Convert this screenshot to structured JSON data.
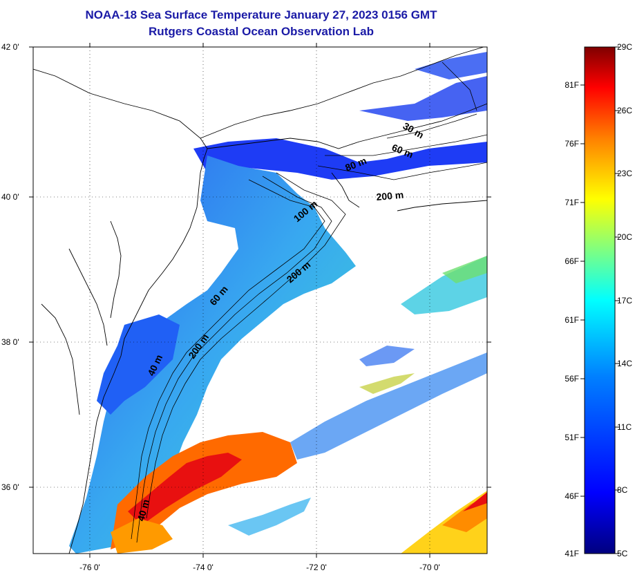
{
  "title": "NOAA-18 Sea Surface Temperature January 27, 2023 0156 GMT",
  "subtitle": "Rutgers Coastal Ocean Observation Lab",
  "map": {
    "lat_ticks": [
      "42 0'",
      "40 0'",
      "38 0'",
      "36 0'"
    ],
    "lon_ticks": [
      "-76 0'",
      "-74 0'",
      "-72 0'",
      "-70 0'"
    ],
    "lat_range": [
      35.0,
      42.0
    ],
    "lon_range": [
      -77.0,
      -69.0
    ],
    "contour_labels": [
      "30 m",
      "60 m",
      "80 m",
      "200 m",
      "100 m",
      "200 m",
      "60 m",
      "200 m",
      "40 m",
      "40 m"
    ]
  },
  "colorbar": {
    "celsius_labels": [
      "29C",
      "26C",
      "23C",
      "20C",
      "17C",
      "14C",
      "11C",
      "8C",
      "5C"
    ],
    "fahrenheit_labels": [
      "81F",
      "76F",
      "71F",
      "66F",
      "61F",
      "56F",
      "51F",
      "46F",
      "41F"
    ],
    "colors": [
      "#00007f",
      "#0000ff",
      "#0080ff",
      "#00ffff",
      "#80ff80",
      "#ffff00",
      "#ff8000",
      "#ff0000",
      "#7f0000"
    ]
  }
}
